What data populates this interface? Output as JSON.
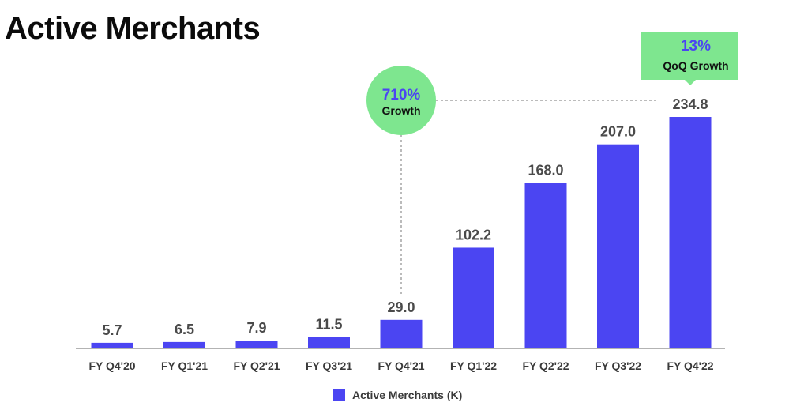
{
  "page": {
    "title": "Active Merchants"
  },
  "colors": {
    "bar": "#4b45f2",
    "callout": "#7ee68f",
    "callout_accent": "#4b45f2",
    "axis": "#9a9a9a"
  },
  "chart_data": {
    "type": "bar",
    "title": "Active Merchants",
    "xlabel": "",
    "ylabel": "",
    "categories": [
      "FY Q4'20",
      "FY Q1'21",
      "FY Q2'21",
      "FY Q3'21",
      "FY Q4'21",
      "FY Q1'22",
      "FY Q2'22",
      "FY Q3'22",
      "FY Q4'22"
    ],
    "series": [
      {
        "name": "Active Merchants (K)",
        "values": [
          5.7,
          6.5,
          7.9,
          11.5,
          29.0,
          102.2,
          168.0,
          207.0,
          234.8
        ]
      }
    ],
    "value_labels": [
      "5.7",
      "6.5",
      "7.9",
      "11.5",
      "29.0",
      "102.2",
      "168.0",
      "207.0",
      "234.8"
    ],
    "ylim": [
      0,
      234.8
    ],
    "grid": false,
    "legend": {
      "position": "bottom-center",
      "entries": [
        "Active Merchants (K)"
      ]
    },
    "annotations": [
      {
        "kind": "circle",
        "big": "710%",
        "small": "Growth",
        "from_category": "FY Q4'21",
        "to_category": "FY Q4'22"
      },
      {
        "kind": "callout",
        "big": "13%",
        "small": "QoQ Growth",
        "category": "FY Q4'22"
      }
    ]
  }
}
